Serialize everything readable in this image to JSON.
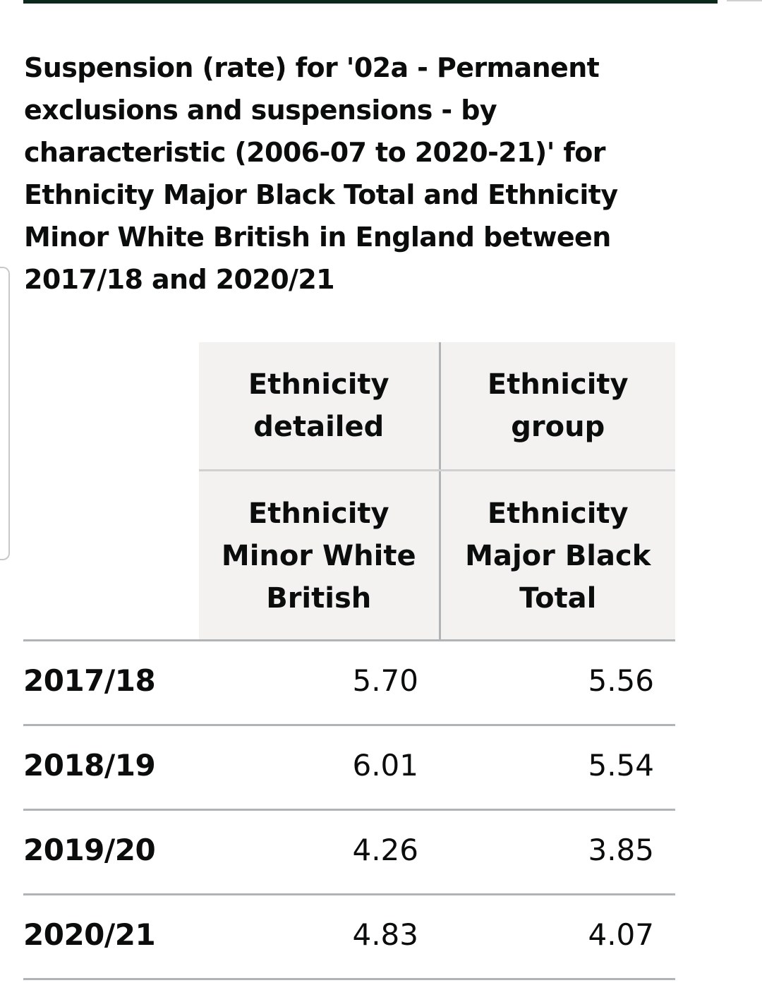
{
  "caption": "Suspension (rate) for '02a - Permanent exclusions and suspensions - by characteristic (2006-07 to 2020-21)' for Ethnicity Major Black Total and Ethnicity Minor White British in England between 2017/18 and 2020/21",
  "table": {
    "header_level_1": [
      "Ethnicity detailed",
      "Ethnicity group"
    ],
    "header_level_2": [
      "Ethnicity Minor White British",
      "Ethnicity Major Black Total"
    ],
    "rows": [
      {
        "label": "2017/18",
        "values": [
          "5.70",
          "5.56"
        ]
      },
      {
        "label": "2018/19",
        "values": [
          "6.01",
          "5.54"
        ]
      },
      {
        "label": "2019/20",
        "values": [
          "4.26",
          "3.85"
        ]
      },
      {
        "label": "2020/21",
        "values": [
          "4.83",
          "4.07"
        ]
      }
    ]
  },
  "chart_data": {
    "type": "table",
    "title": "Suspension (rate) for '02a - Permanent exclusions and suspensions - by characteristic (2006-07 to 2020-21)' for Ethnicity Major Black Total and Ethnicity Minor White British in England between 2017/18 and 2020/21",
    "columns": [
      "Ethnicity Minor White British",
      "Ethnicity Major Black Total"
    ],
    "column_groups": [
      "Ethnicity detailed",
      "Ethnicity group"
    ],
    "categories": [
      "2017/18",
      "2018/19",
      "2019/20",
      "2020/21"
    ],
    "series": [
      {
        "name": "Ethnicity Minor White British",
        "values": [
          5.7,
          6.01,
          4.26,
          4.83
        ]
      },
      {
        "name": "Ethnicity Major Black Total",
        "values": [
          5.56,
          5.54,
          3.85,
          4.07
        ]
      }
    ]
  }
}
